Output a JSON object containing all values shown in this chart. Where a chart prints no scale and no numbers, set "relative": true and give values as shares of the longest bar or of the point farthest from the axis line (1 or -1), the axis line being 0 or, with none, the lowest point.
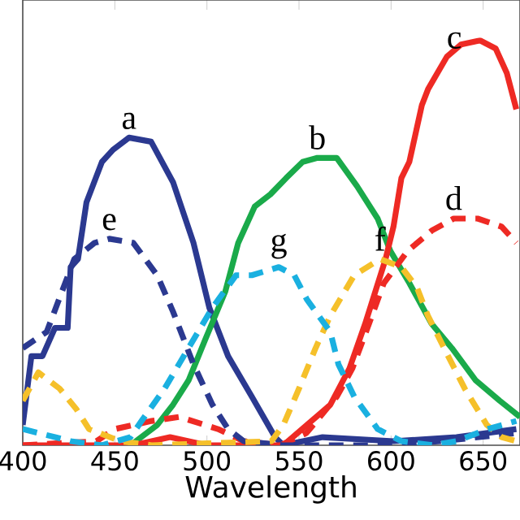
{
  "chart_data": {
    "type": "line",
    "relative": true,
    "xlabel": "Wavelength",
    "xlim": [
      400,
      670
    ],
    "xticks": [
      400,
      450,
      500,
      550,
      600,
      650
    ],
    "grid": false,
    "marker": "none",
    "series": [
      {
        "name": "a",
        "color": "#2b3990",
        "line_style": "solid",
        "x": [
          400,
          404.7,
          410.7,
          417.5,
          424.4,
          426,
          430,
          434.6,
          443,
          449,
          457.7,
          469.7,
          481.6,
          492.7,
          501.3,
          511.5,
          524.4,
          537,
          541.5,
          562.8,
          601.3,
          635.5,
          668
        ],
        "values": [
          0.05,
          0.22,
          0.22,
          0.29,
          0.29,
          0.44,
          0.46,
          0.6,
          0.7,
          0.73,
          0.76,
          0.75,
          0.65,
          0.5,
          0.34,
          0.22,
          0.12,
          0.02,
          0,
          0.02,
          0.01,
          0.02,
          0.04
        ]
      },
      {
        "name": "b",
        "color": "#1aaa4a",
        "line_style": "solid",
        "x": [
          458.5,
          473,
          481.6,
          490,
          499,
          510,
          517,
          526,
          534.5,
          543,
          552,
          560,
          570.5,
          581.5,
          592.7,
          599.6,
          610,
          622,
          633,
          646,
          659,
          670
        ],
        "values": [
          0,
          0.05,
          0.1,
          0.16,
          0.26,
          0.38,
          0.5,
          0.59,
          0.62,
          0.66,
          0.7,
          0.71,
          0.71,
          0.64,
          0.56,
          0.48,
          0.4,
          0.3,
          0.24,
          0.16,
          0.11,
          0.07
        ]
      },
      {
        "name": "c",
        "color": "#ee2a24",
        "line_style": "solid",
        "x": [
          400,
          460,
          480,
          500,
          541.5,
          554.3,
          567,
          577.4,
          585.9,
          597,
          601.3,
          605.6,
          609.9,
          616.7,
          620.1,
          630.3,
          638,
          648.3,
          656.8,
          662.8,
          668
        ],
        "values": [
          0,
          0,
          0.02,
          0,
          0,
          0.05,
          0.1,
          0.19,
          0.3,
          0.46,
          0.54,
          0.66,
          0.7,
          0.84,
          0.88,
          0.96,
          0.99,
          1.0,
          0.98,
          0.92,
          0.83
        ]
      },
      {
        "name": "d",
        "color": "#ee2a24",
        "line_style": "dashed",
        "x": [
          400,
          440,
          450,
          470,
          485,
          506,
          520,
          540,
          554,
          570.5,
          579,
          588,
          596,
          609,
          622,
          634,
          647,
          660,
          668
        ],
        "values": [
          0,
          0.01,
          0.04,
          0.06,
          0.07,
          0.04,
          0.01,
          0,
          0.03,
          0.12,
          0.19,
          0.3,
          0.4,
          0.48,
          0.53,
          0.56,
          0.56,
          0.54,
          0.5
        ]
      },
      {
        "name": "e",
        "color": "#2b3990",
        "line_style": "dashed",
        "x": [
          400,
          413,
          428,
          439,
          447,
          460,
          473,
          481.6,
          492.7,
          503,
          511.5,
          520,
          541,
          593,
          627,
          668
        ],
        "values": [
          0.24,
          0.28,
          0.46,
          0.5,
          0.51,
          0.5,
          0.42,
          0.33,
          0.2,
          0.1,
          0.04,
          0.01,
          0,
          0,
          0.01,
          0.03
        ]
      },
      {
        "name": "f",
        "color": "#f5c02a",
        "line_style": "dashed",
        "x": [
          400,
          408.5,
          420,
          429,
          436,
          453,
          470,
          535,
          541.5,
          550,
          559,
          567,
          580,
          594,
          605.6,
          614,
          620,
          631,
          640,
          652,
          660,
          668
        ],
        "values": [
          0.11,
          0.18,
          0.14,
          0.09,
          0.04,
          0.01,
          0,
          0.01,
          0.05,
          0.14,
          0.24,
          0.32,
          0.42,
          0.46,
          0.44,
          0.39,
          0.32,
          0.22,
          0.14,
          0.05,
          0.02,
          0.01
        ]
      },
      {
        "name": "g",
        "color": "#1ab0e0",
        "line_style": "dashed",
        "x": [
          400,
          417.5,
          426,
          443,
          458.5,
          464.5,
          477,
          490,
          503,
          515.8,
          524.4,
          539,
          547.4,
          554.3,
          567,
          571.4,
          580,
          592.7,
          605.6,
          622.6,
          635.5,
          652.6,
          668
        ],
        "values": [
          0.04,
          0.02,
          0.01,
          0,
          0.02,
          0.06,
          0.14,
          0.24,
          0.34,
          0.42,
          0.42,
          0.44,
          0.42,
          0.36,
          0.28,
          0.2,
          0.12,
          0.04,
          0.01,
          0,
          0.01,
          0.04,
          0.06
        ]
      }
    ]
  }
}
